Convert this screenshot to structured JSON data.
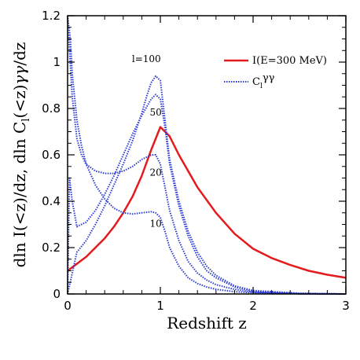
{
  "chart_data": {
    "type": "line",
    "title": "",
    "xlabel": "Redshift  z",
    "ylabel": "dln I(<z)/dz,  dln C_l(<z)γγ/dz",
    "xlim": [
      0,
      3
    ],
    "ylim": [
      0,
      1.2
    ],
    "x_ticks": [
      "0",
      "1",
      "2",
      "3"
    ],
    "y_ticks": [
      "0",
      "0.2",
      "0.4",
      "0.6",
      "0.8",
      "1",
      "1.2"
    ],
    "grid": false,
    "legend": {
      "placement": "top-right",
      "entries": [
        {
          "label": "I(E=300 MeV)",
          "color": "#e41a1c",
          "style": "solid"
        },
        {
          "label": "C_l^γγ",
          "color": "#2b3bd6",
          "style": "dotted"
        }
      ]
    },
    "series": [
      {
        "name": "I(E=300 MeV)",
        "color": "#e41a1c",
        "style": "solid",
        "x": [
          0,
          0.1,
          0.2,
          0.3,
          0.4,
          0.5,
          0.6,
          0.7,
          0.8,
          0.9,
          1.0,
          1.1,
          1.2,
          1.4,
          1.6,
          1.8,
          2.0,
          2.2,
          2.4,
          2.6,
          2.8,
          3.0
        ],
        "values": [
          0.1,
          0.13,
          0.16,
          0.2,
          0.24,
          0.29,
          0.35,
          0.42,
          0.51,
          0.62,
          0.72,
          0.68,
          0.6,
          0.46,
          0.35,
          0.26,
          0.195,
          0.155,
          0.125,
          0.1,
          0.083,
          0.07
        ]
      },
      {
        "name": "l=100",
        "color": "#2b3bd6",
        "style": "dotted",
        "x": [
          0.0,
          0.1,
          0.2,
          0.3,
          0.4,
          0.5,
          0.6,
          0.7,
          0.8,
          0.85,
          0.9,
          0.95,
          1.0,
          1.05,
          1.1,
          1.2,
          1.3,
          1.4,
          1.5,
          1.6,
          1.8,
          2.0,
          2.5,
          3.0
        ],
        "values": [
          0.0,
          0.18,
          0.23,
          0.3,
          0.38,
          0.47,
          0.56,
          0.66,
          0.78,
          0.85,
          0.91,
          0.94,
          0.92,
          0.75,
          0.58,
          0.4,
          0.27,
          0.18,
          0.12,
          0.08,
          0.035,
          0.015,
          0.003,
          0.0
        ]
      },
      {
        "name": "50",
        "color": "#2b3bd6",
        "style": "dotted",
        "x": [
          0.0,
          0.02,
          0.05,
          0.1,
          0.2,
          0.3,
          0.4,
          0.5,
          0.6,
          0.7,
          0.8,
          0.9,
          0.95,
          1.0,
          1.05,
          1.1,
          1.2,
          1.3,
          1.4,
          1.5,
          1.6,
          1.8,
          2.0,
          2.5,
          3.0
        ],
        "values": [
          0.0,
          0.5,
          0.4,
          0.29,
          0.31,
          0.36,
          0.43,
          0.51,
          0.6,
          0.69,
          0.77,
          0.84,
          0.86,
          0.84,
          0.72,
          0.56,
          0.38,
          0.25,
          0.16,
          0.1,
          0.07,
          0.03,
          0.012,
          0.002,
          0.0
        ]
      },
      {
        "name": "20",
        "color": "#2b3bd6",
        "style": "dotted",
        "x": [
          0.0,
          0.02,
          0.05,
          0.1,
          0.15,
          0.2,
          0.3,
          0.4,
          0.5,
          0.6,
          0.7,
          0.8,
          0.9,
          0.95,
          1.0,
          1.05,
          1.1,
          1.2,
          1.3,
          1.4,
          1.5,
          1.6,
          1.8,
          2.0,
          2.5,
          3.0
        ],
        "values": [
          1.2,
          1.05,
          0.85,
          0.67,
          0.6,
          0.56,
          0.53,
          0.52,
          0.52,
          0.53,
          0.55,
          0.58,
          0.6,
          0.6,
          0.56,
          0.46,
          0.36,
          0.23,
          0.14,
          0.09,
          0.06,
          0.04,
          0.02,
          0.008,
          0.001,
          0.0
        ]
      },
      {
        "name": "10",
        "color": "#2b3bd6",
        "style": "dotted",
        "x": [
          0.0,
          0.03,
          0.05,
          0.1,
          0.15,
          0.2,
          0.3,
          0.4,
          0.5,
          0.6,
          0.7,
          0.8,
          0.9,
          0.95,
          1.0,
          1.05,
          1.1,
          1.2,
          1.3,
          1.4,
          1.5,
          1.6,
          1.8,
          2.0,
          2.5,
          3.0
        ],
        "values": [
          1.2,
          1.1,
          0.95,
          0.75,
          0.64,
          0.56,
          0.47,
          0.41,
          0.37,
          0.35,
          0.345,
          0.35,
          0.355,
          0.35,
          0.33,
          0.27,
          0.2,
          0.12,
          0.07,
          0.045,
          0.03,
          0.02,
          0.01,
          0.005,
          0.001,
          0.0
        ]
      }
    ],
    "annotations": [
      {
        "text": "l=100",
        "x": 0.85,
        "y": 1.0
      },
      {
        "text": "50",
        "x": 0.95,
        "y": 0.77
      },
      {
        "text": "20",
        "x": 0.95,
        "y": 0.51
      },
      {
        "text": "10",
        "x": 0.95,
        "y": 0.29
      }
    ]
  }
}
